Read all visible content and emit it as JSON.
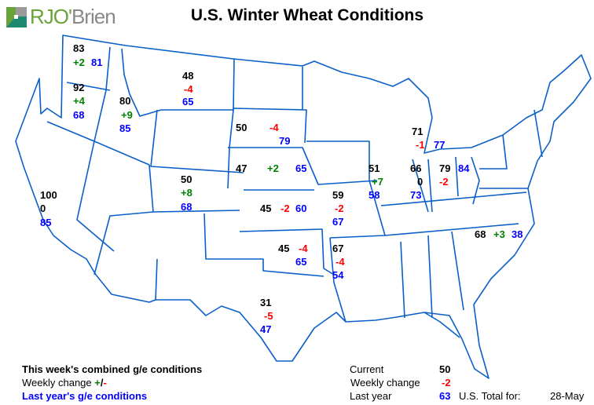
{
  "brand": {
    "logo_text_a": "RJO'",
    "logo_text_b": "Brien",
    "color_green": "#6aa33a",
    "color_gray": "#8a8a8a"
  },
  "title": "U.S. Winter Wheat Conditions",
  "colors": {
    "current": "#000000",
    "positive": "#008000",
    "negative": "#ff0000",
    "last_year": "#0000ff",
    "border": "#0a5fc8"
  },
  "regions": [
    {
      "current": "83",
      "change": "+2",
      "last_year": "81"
    },
    {
      "current": "92",
      "change": "+4",
      "last_year": "68"
    },
    {
      "current": "80",
      "change": "+9",
      "last_year": "85"
    },
    {
      "current": "48",
      "change": "-4",
      "last_year": "65"
    },
    {
      "current": "50",
      "change": "-4",
      "last_year": "79"
    },
    {
      "current": "47",
      "change": "+2",
      "last_year": "65"
    },
    {
      "current": "50",
      "change": "+8",
      "last_year": "68"
    },
    {
      "current": "45",
      "change": "-2",
      "last_year": "60"
    },
    {
      "current": "59",
      "change": "-2",
      "last_year": "67"
    },
    {
      "current": "45",
      "change": "-4",
      "last_year": "65"
    },
    {
      "current": "67",
      "change": "-4",
      "last_year": "54"
    },
    {
      "current": "51",
      "change": "+7",
      "last_year": "58"
    },
    {
      "current": "66",
      "change": "0",
      "last_year": "73"
    },
    {
      "current": "79",
      "change": "-2",
      "last_year": "84"
    },
    {
      "current": "71",
      "change": "-1",
      "last_year": "77"
    },
    {
      "current": "68",
      "change": "+3",
      "last_year": "38"
    },
    {
      "current": "100",
      "change": "0",
      "last_year": "85"
    },
    {
      "current": "31",
      "change": "-5",
      "last_year": "47"
    }
  ],
  "legend": {
    "line1": "This week's combined g/e conditions",
    "line2": "Weekly change ",
    "plus": "+",
    "slash": "/",
    "minus": "-",
    "line3": "Last year's g/e conditions"
  },
  "totals": {
    "current_label": "Current",
    "current_value": "50",
    "change_label": "Weekly change",
    "change_value": "-2",
    "last_year_label": "Last year",
    "last_year_value": "63",
    "total_for_label": "U.S. Total for:",
    "date": "28-May"
  }
}
